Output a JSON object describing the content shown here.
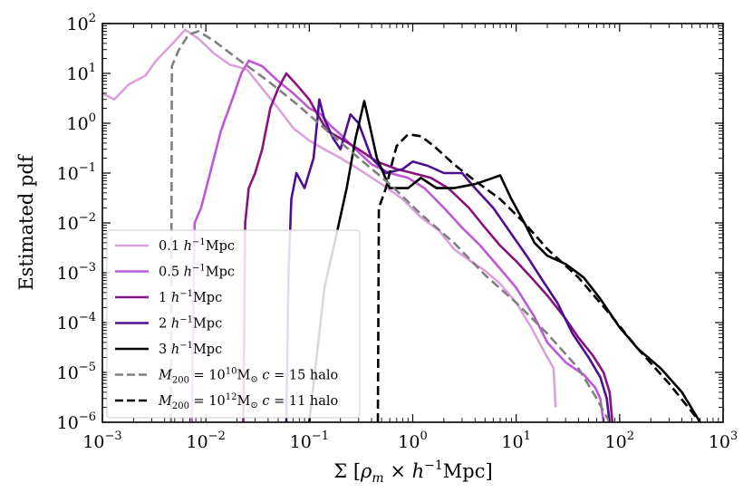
{
  "chart_data": {
    "type": "line",
    "xscale": "log",
    "yscale": "log",
    "xlim": [
      0.001,
      1000
    ],
    "ylim": [
      1e-06,
      100
    ],
    "xlabel": "Σ [ρ_m × h⁻¹Mpc]",
    "ylabel": "Estimated pdf",
    "grid": false,
    "legend_position": "lower-left",
    "x_ticks": [
      {
        "base": "10",
        "exp": "−3",
        "value": 0.001
      },
      {
        "base": "10",
        "exp": "−2",
        "value": 0.01
      },
      {
        "base": "10",
        "exp": "−1",
        "value": 0.1
      },
      {
        "base": "10",
        "exp": "0",
        "value": 1
      },
      {
        "base": "10",
        "exp": "1",
        "value": 10
      },
      {
        "base": "10",
        "exp": "2",
        "value": 100
      },
      {
        "base": "10",
        "exp": "3",
        "value": 1000
      }
    ],
    "y_ticks": [
      {
        "base": "10",
        "exp": "−6",
        "value": 1e-06
      },
      {
        "base": "10",
        "exp": "−5",
        "value": 1e-05
      },
      {
        "base": "10",
        "exp": "−4",
        "value": 0.0001
      },
      {
        "base": "10",
        "exp": "−3",
        "value": 0.001
      },
      {
        "base": "10",
        "exp": "−2",
        "value": 0.01
      },
      {
        "base": "10",
        "exp": "−1",
        "value": 0.1
      },
      {
        "base": "10",
        "exp": "0",
        "value": 1
      },
      {
        "base": "10",
        "exp": "1",
        "value": 10
      },
      {
        "base": "10",
        "exp": "2",
        "value": 100
      }
    ],
    "series": [
      {
        "name": "0.1 h⁻¹Mpc",
        "legend": {
          "pre": "0.1 ",
          "h": "h",
          "sup": "−1",
          "post": "Mpc"
        },
        "color": "#dca0dc",
        "dash": "solid",
        "points": [
          [
            0.001,
            4
          ],
          [
            0.0013,
            3
          ],
          [
            0.0018,
            6
          ],
          [
            0.0026,
            9
          ],
          [
            0.0033,
            18
          ],
          [
            0.0045,
            35
          ],
          [
            0.0063,
            75
          ],
          [
            0.0085,
            50
          ],
          [
            0.012,
            25
          ],
          [
            0.017,
            15
          ],
          [
            0.025,
            12
          ],
          [
            0.035,
            5
          ],
          [
            0.05,
            2
          ],
          [
            0.07,
            0.8
          ],
          [
            0.1,
            0.45
          ],
          [
            0.14,
            0.3
          ],
          [
            0.2,
            0.2
          ],
          [
            0.3,
            0.12
          ],
          [
            0.5,
            0.06
          ],
          [
            0.8,
            0.03
          ],
          [
            1.2,
            0.013
          ],
          [
            1.8,
            0.007
          ],
          [
            2.5,
            0.003
          ],
          [
            3.5,
            0.0018
          ],
          [
            5,
            0.0011
          ],
          [
            7,
            0.0006
          ],
          [
            10,
            0.00025
          ],
          [
            14,
            8e-05
          ],
          [
            18,
            3e-05
          ],
          [
            23,
            1.2e-05
          ],
          [
            24,
            2e-06
          ]
        ]
      },
      {
        "name": "0.5 h⁻¹Mpc",
        "legend": {
          "pre": "0.5 ",
          "h": "h",
          "sup": "−1",
          "post": "Mpc"
        },
        "color": "#bf58d8",
        "dash": "solid",
        "points": [
          [
            0.0073,
            1e-06
          ],
          [
            0.0078,
            0.01
          ],
          [
            0.009,
            0.02
          ],
          [
            0.011,
            0.1
          ],
          [
            0.014,
            0.7
          ],
          [
            0.018,
            3
          ],
          [
            0.022,
            10
          ],
          [
            0.026,
            18
          ],
          [
            0.035,
            14
          ],
          [
            0.05,
            7
          ],
          [
            0.07,
            4
          ],
          [
            0.1,
            2
          ],
          [
            0.13,
            1.5
          ],
          [
            0.16,
            0.9
          ],
          [
            0.2,
            0.6
          ],
          [
            0.28,
            0.3
          ],
          [
            0.4,
            0.15
          ],
          [
            0.6,
            0.1
          ],
          [
            0.9,
            0.08
          ],
          [
            1.3,
            0.05
          ],
          [
            2,
            0.02
          ],
          [
            3,
            0.008
          ],
          [
            4.5,
            0.0035
          ],
          [
            7,
            0.0012
          ],
          [
            10,
            0.0005
          ],
          [
            15,
            0.00013
          ],
          [
            20,
            4e-05
          ],
          [
            30,
            1.6e-05
          ],
          [
            45,
            9e-06
          ],
          [
            58,
            5e-06
          ],
          [
            65,
            3e-06
          ],
          [
            70,
            1e-06
          ]
        ]
      },
      {
        "name": "1 h⁻¹Mpc",
        "legend": {
          "pre": "1 ",
          "h": "h",
          "sup": "−1",
          "post": "Mpc"
        },
        "color": "#8a127f",
        "dash": "solid",
        "points": [
          [
            0.023,
            1e-06
          ],
          [
            0.024,
            0.01
          ],
          [
            0.026,
            0.05
          ],
          [
            0.03,
            0.1
          ],
          [
            0.035,
            0.3
          ],
          [
            0.042,
            2
          ],
          [
            0.05,
            5
          ],
          [
            0.06,
            10
          ],
          [
            0.075,
            6
          ],
          [
            0.1,
            3
          ],
          [
            0.12,
            1.5
          ],
          [
            0.15,
            0.7
          ],
          [
            0.2,
            0.5
          ],
          [
            0.3,
            0.3
          ],
          [
            0.45,
            0.17
          ],
          [
            0.7,
            0.12
          ],
          [
            1,
            0.1
          ],
          [
            1.5,
            0.08
          ],
          [
            2.2,
            0.05
          ],
          [
            3.5,
            0.02
          ],
          [
            5,
            0.008
          ],
          [
            7,
            0.0035
          ],
          [
            10,
            0.0017
          ],
          [
            14,
            0.0008
          ],
          [
            20,
            0.00035
          ],
          [
            30,
            0.00012
          ],
          [
            40,
            5e-05
          ],
          [
            55,
            2.2e-05
          ],
          [
            70,
            1e-05
          ],
          [
            80,
            4e-06
          ],
          [
            85,
            1e-06
          ]
        ]
      },
      {
        "name": "2 h⁻¹Mpc",
        "legend": {
          "pre": "2 ",
          "h": "h",
          "sup": "−1",
          "post": "Mpc"
        },
        "color": "#4e1092",
        "dash": "solid",
        "points": [
          [
            0.06,
            1e-06
          ],
          [
            0.063,
            0.001
          ],
          [
            0.067,
            0.03
          ],
          [
            0.075,
            0.1
          ],
          [
            0.09,
            0.05
          ],
          [
            0.11,
            0.2
          ],
          [
            0.125,
            3
          ],
          [
            0.14,
            1.2
          ],
          [
            0.17,
            0.5
          ],
          [
            0.2,
            0.3
          ],
          [
            0.25,
            1.5
          ],
          [
            0.3,
            1
          ],
          [
            0.4,
            0.2
          ],
          [
            0.55,
            0.1
          ],
          [
            0.8,
            0.12
          ],
          [
            1,
            0.17
          ],
          [
            1.4,
            0.14
          ],
          [
            2,
            0.1
          ],
          [
            3,
            0.1
          ],
          [
            4,
            0.05
          ],
          [
            6,
            0.02
          ],
          [
            9,
            0.006
          ],
          [
            13,
            0.002
          ],
          [
            18,
            0.0007
          ],
          [
            25,
            0.00025
          ],
          [
            35,
            6e-05
          ],
          [
            50,
            2e-05
          ],
          [
            65,
            8e-06
          ],
          [
            75,
            3e-06
          ],
          [
            80,
            1e-06
          ]
        ]
      },
      {
        "name": "3 h⁻¹Mpc",
        "legend": {
          "pre": "3 ",
          "h": "h",
          "sup": "−1",
          "post": "Mpc"
        },
        "color": "#000000",
        "dash": "solid",
        "points": [
          [
            0.1,
            1e-06
          ],
          [
            0.14,
            0.0005
          ],
          [
            0.18,
            0.005
          ],
          [
            0.23,
            0.05
          ],
          [
            0.28,
            0.5
          ],
          [
            0.34,
            2.8
          ],
          [
            0.38,
            1
          ],
          [
            0.45,
            0.2
          ],
          [
            0.6,
            0.05
          ],
          [
            0.9,
            0.05
          ],
          [
            1.2,
            0.08
          ],
          [
            1.7,
            0.05
          ],
          [
            2.5,
            0.05
          ],
          [
            4,
            0.06
          ],
          [
            6,
            0.08
          ],
          [
            7,
            0.09
          ],
          [
            9,
            0.03
          ],
          [
            12,
            0.01
          ],
          [
            15,
            0.004
          ],
          [
            20,
            0.0022
          ],
          [
            30,
            0.0015
          ],
          [
            45,
            0.0008
          ],
          [
            65,
            0.0003
          ],
          [
            100,
            8e-05
          ],
          [
            150,
            3e-05
          ],
          [
            250,
            1.2e-05
          ],
          [
            400,
            4e-06
          ],
          [
            600,
            1e-06
          ]
        ]
      },
      {
        "name": "M200 = 10^10 M⊙ c = 15 halo",
        "legend": {
          "M": "M",
          "Msub": "200",
          "eq": " = 10",
          "exp": "10",
          "Msun": "M",
          "sun": "⊙",
          "c": " c",
          "rest": " = 15 halo"
        },
        "color": "#808080",
        "dash": "dashed",
        "points": [
          [
            0.0046,
            1e-06
          ],
          [
            0.0047,
            14
          ],
          [
            0.0055,
            30
          ],
          [
            0.0068,
            60
          ],
          [
            0.0085,
            70
          ],
          [
            0.012,
            45
          ],
          [
            0.02,
            20
          ],
          [
            0.04,
            7
          ],
          [
            0.08,
            2.2
          ],
          [
            0.15,
            0.7
          ],
          [
            0.3,
            0.2
          ],
          [
            0.6,
            0.06
          ],
          [
            1.2,
            0.015
          ],
          [
            2.5,
            0.004
          ],
          [
            5,
            0.0009
          ],
          [
            10,
            0.00025
          ],
          [
            20,
            6e-05
          ],
          [
            40,
            1.2e-05
          ],
          [
            60,
            3e-06
          ],
          [
            80,
            1e-06
          ]
        ]
      },
      {
        "name": "M200 = 10^12 M⊙ c = 11 halo",
        "legend": {
          "M": "M",
          "Msub": "200",
          "eq": " = 10",
          "exp": "12",
          "Msun": "M",
          "sun": "⊙",
          "c": " c",
          "rest": " = 11 halo"
        },
        "color": "#000000",
        "dash": "dashed",
        "points": [
          [
            0.46,
            1e-06
          ],
          [
            0.47,
            0.02
          ],
          [
            0.55,
            0.05
          ],
          [
            0.65,
            0.2
          ],
          [
            0.7,
            0.35
          ],
          [
            0.9,
            0.6
          ],
          [
            1.2,
            0.55
          ],
          [
            1.6,
            0.35
          ],
          [
            2.5,
            0.15
          ],
          [
            4,
            0.07
          ],
          [
            7,
            0.03
          ],
          [
            12,
            0.01
          ],
          [
            20,
            0.003
          ],
          [
            40,
            0.0008
          ],
          [
            80,
            0.00015
          ],
          [
            150,
            3e-05
          ],
          [
            300,
            6e-06
          ],
          [
            600,
            1e-06
          ]
        ]
      }
    ]
  }
}
